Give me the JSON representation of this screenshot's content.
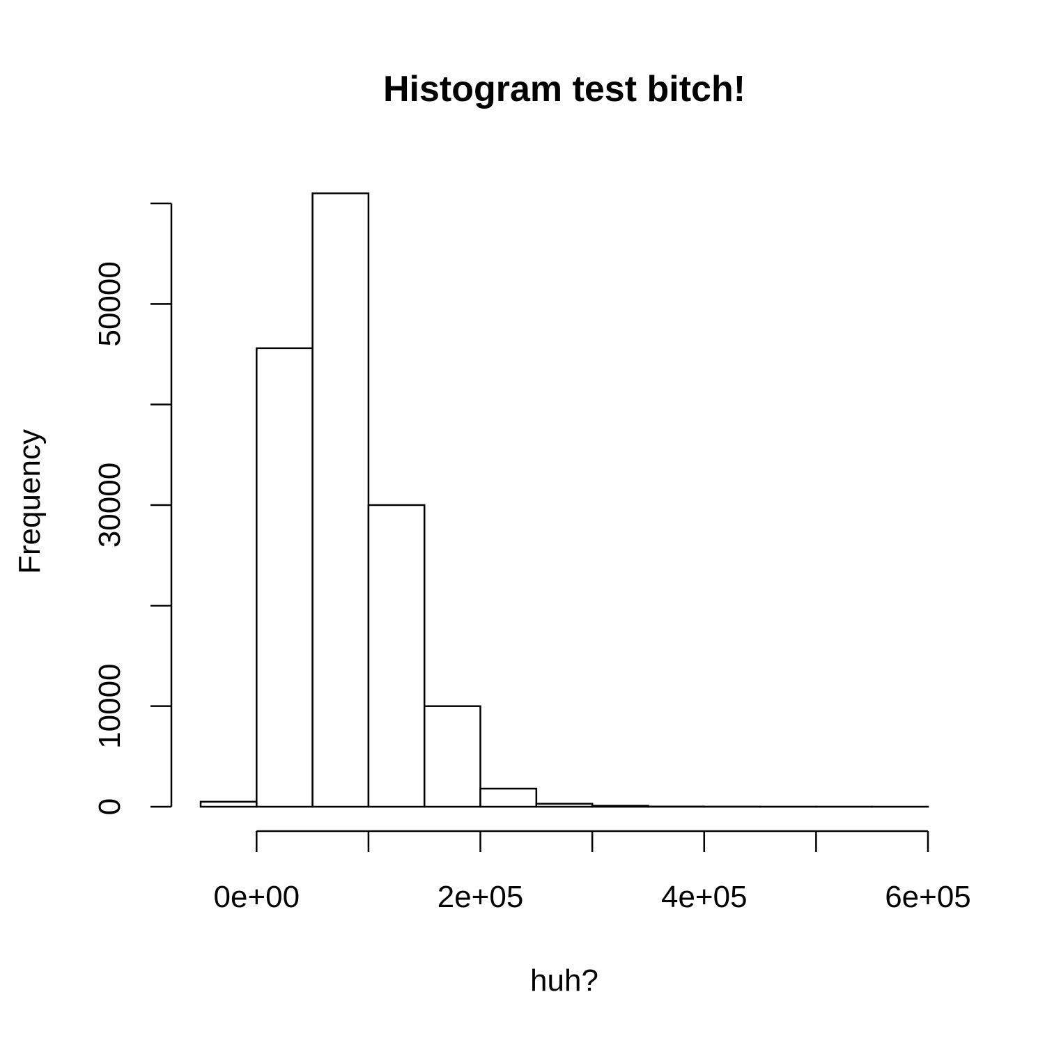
{
  "chart_data": {
    "type": "bar",
    "title": "Histogram test bitch!",
    "xlabel": "huh?",
    "ylabel": "Frequency",
    "bin_width": 50000,
    "bins": [
      {
        "start": -50000,
        "end": 0,
        "count": 500
      },
      {
        "start": 0,
        "end": 50000,
        "count": 45600
      },
      {
        "start": 50000,
        "end": 100000,
        "count": 61000
      },
      {
        "start": 100000,
        "end": 150000,
        "count": 30000
      },
      {
        "start": 150000,
        "end": 200000,
        "count": 10000
      },
      {
        "start": 200000,
        "end": 250000,
        "count": 1800
      },
      {
        "start": 250000,
        "end": 300000,
        "count": 300
      },
      {
        "start": 300000,
        "end": 350000,
        "count": 100
      },
      {
        "start": 350000,
        "end": 400000,
        "count": 20
      },
      {
        "start": 400000,
        "end": 450000,
        "count": 10
      },
      {
        "start": 450000,
        "end": 500000,
        "count": 5
      },
      {
        "start": 500000,
        "end": 550000,
        "count": 3
      },
      {
        "start": 550000,
        "end": 600000,
        "count": 2
      }
    ],
    "xlim": [
      -50000,
      600000
    ],
    "ylim": [
      0,
      60000
    ],
    "x_ticks": [
      0,
      100000,
      200000,
      300000,
      400000,
      500000,
      600000
    ],
    "x_tick_labels": [
      {
        "value": 0,
        "label": "0e+00"
      },
      {
        "value": 200000,
        "label": "2e+05"
      },
      {
        "value": 400000,
        "label": "4e+05"
      },
      {
        "value": 600000,
        "label": "6e+05"
      }
    ],
    "y_ticks": [
      0,
      10000,
      20000,
      30000,
      40000,
      50000,
      60000
    ],
    "y_tick_labels": [
      {
        "value": 0,
        "label": "0"
      },
      {
        "value": 10000,
        "label": "10000"
      },
      {
        "value": 30000,
        "label": "30000"
      },
      {
        "value": 50000,
        "label": "50000"
      }
    ],
    "grid": false,
    "legend": "none"
  }
}
